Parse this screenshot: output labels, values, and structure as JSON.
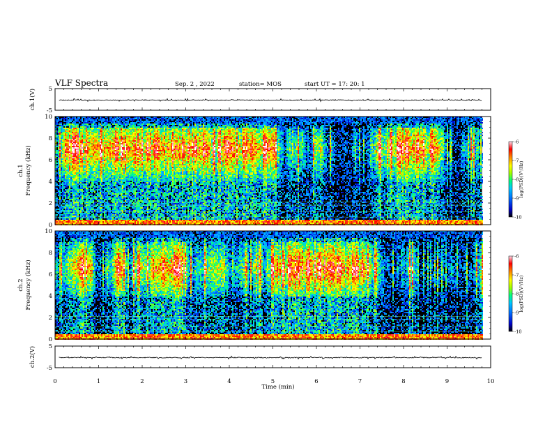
{
  "header": {
    "title": "VLF Spectra",
    "date": "Sep. 2 , 2022",
    "station": "station= MOS",
    "start": "start  UT =   17: 20: 1"
  },
  "chart_data": {
    "type": "heatmap",
    "title": "VLF Spectra",
    "xlabel": "Time (min)",
    "xlim": [
      0,
      10
    ],
    "x_ticks": [
      "0",
      "1",
      "2",
      "3",
      "4",
      "5",
      "6",
      "7",
      "8",
      "9",
      "10"
    ],
    "data_end_min": 9.8,
    "panels": [
      {
        "id": "wave-ch1",
        "kind": "waveform",
        "ylabel": "ch.1(V)",
        "ylim": [
          -5,
          5
        ],
        "y_ticks": [
          "5",
          "-5"
        ],
        "baseline_v": 0
      },
      {
        "id": "spec-ch1",
        "kind": "spectrogram",
        "ylabel_line1": "ch.1",
        "ylabel_line2": "Frequency (kHz)",
        "ylim": [
          0,
          10
        ],
        "y_ticks": [
          "0",
          "2",
          "4",
          "6",
          "8",
          "10"
        ],
        "emission_band_khz": [
          4,
          9
        ],
        "peak_khz": 7,
        "colorbar": {
          "label": "log(PSD)(V²/Hz)",
          "range": [
            -10,
            -6
          ],
          "ticks": [
            "-6",
            "-7",
            "-8",
            "-9",
            "-10"
          ]
        }
      },
      {
        "id": "spec-ch2",
        "kind": "spectrogram",
        "ylabel_line1": "ch.2",
        "ylabel_line2": "Frequency (kHz)",
        "ylim": [
          0,
          10
        ],
        "y_ticks": [
          "0",
          "2",
          "4",
          "6",
          "8",
          "10"
        ],
        "emission_band_khz": [
          4,
          9
        ],
        "peak_khz": 6.5,
        "colorbar": {
          "label": "log(PSD)(V²/Hz)",
          "range": [
            -10,
            -6
          ],
          "ticks": [
            "-6",
            "-7",
            "-8",
            "-9",
            "-10"
          ]
        }
      },
      {
        "id": "wave-ch2",
        "kind": "waveform",
        "ylabel": "ch.2(V)",
        "ylim": [
          -5,
          5
        ],
        "y_ticks": [
          "5",
          "-5"
        ],
        "baseline_v": 0
      }
    ],
    "colormap": [
      "#000000",
      "#0000c8",
      "#0070ff",
      "#00c8ff",
      "#00ff80",
      "#a0ff00",
      "#ffff00",
      "#ff8000",
      "#ff0000",
      "#ff80b0",
      "#ffffff"
    ]
  }
}
